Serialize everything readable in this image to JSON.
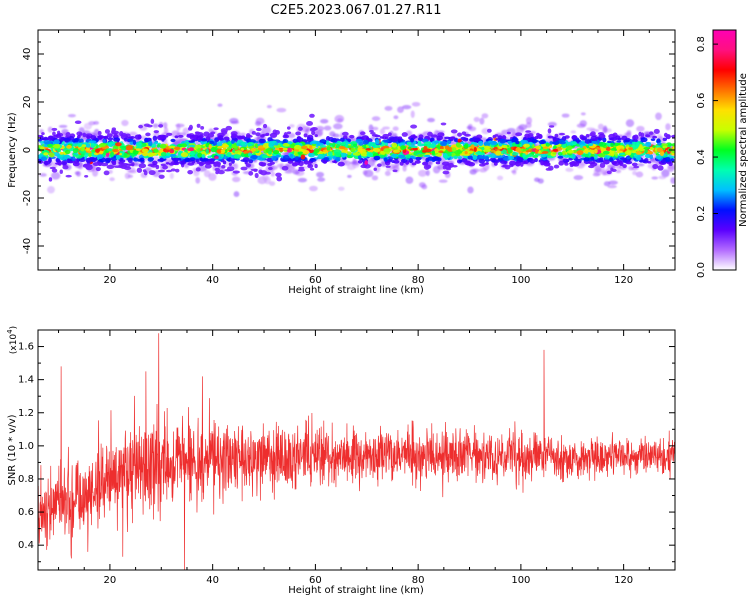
{
  "figure_title": "C2E5.2023.067.01.27.R11",
  "colors": {
    "snr_line": "#ee2e2e",
    "colormap": [
      "#ffffff",
      "#b26bff",
      "#5a00ff",
      "#0010ff",
      "#00c0ff",
      "#00ffb0",
      "#00ff20",
      "#c8ff00",
      "#ffe000",
      "#ff7000",
      "#ff0000",
      "#ff1080",
      "#ff00b4"
    ]
  },
  "chart_data": [
    {
      "type": "heatmap",
      "panel": "spectrogram",
      "title": "",
      "xlabel": "Height of straight line (km)",
      "ylabel": "Frequency (Hz)",
      "xlim": [
        6,
        130
      ],
      "ylim": [
        -50,
        50
      ],
      "x_ticks": [
        "20",
        "40",
        "60",
        "80",
        "100",
        "120"
      ],
      "y_ticks": [
        "-40",
        "-20",
        "0",
        "20",
        "40"
      ],
      "grid": false,
      "description_of_signal": "Narrow band of spectral power centred on 0 Hz (roughly -10 to +10 Hz) across all heights",
      "colorbar": {
        "label": "Normalized spectral amplitude",
        "range": [
          0.0,
          0.85
        ],
        "ticks": [
          "0.0",
          "0.2",
          "0.4",
          "0.6",
          "0.8"
        ]
      }
    },
    {
      "type": "line",
      "panel": "snr",
      "title": "",
      "xlabel": "Height of straight line (km)",
      "ylabel": "SNR (10 * v/v)",
      "y_multiplier": "(x10",
      "y_multiplier_exp": "4",
      "y_multiplier_close": ")",
      "xlim": [
        6,
        130
      ],
      "ylim": [
        0.25,
        1.7
      ],
      "x_ticks": [
        "20",
        "40",
        "60",
        "80",
        "100",
        "120"
      ],
      "y_ticks": [
        "0.4",
        "0.6",
        "0.8",
        "1.0",
        "1.2",
        "1.4",
        "1.6"
      ],
      "grid": false,
      "series": [
        {
          "color": "#ee2e2e",
          "envelope_x": [
            6,
            10,
            15,
            20,
            25,
            30,
            40,
            50,
            60,
            70,
            80,
            90,
            100,
            110,
            120,
            130
          ],
          "mean_y": [
            0.62,
            0.66,
            0.72,
            0.8,
            0.86,
            0.9,
            0.92,
            0.93,
            0.93,
            0.93,
            0.94,
            0.94,
            0.94,
            0.93,
            0.93,
            0.94
          ],
          "spread": [
            0.22,
            0.28,
            0.32,
            0.3,
            0.32,
            0.3,
            0.26,
            0.22,
            0.2,
            0.18,
            0.18,
            0.16,
            0.16,
            0.14,
            0.13,
            0.13
          ],
          "peaks": [
            {
              "x": 10.5,
              "y": 1.48
            },
            {
              "x": 29.5,
              "y": 1.68
            },
            {
              "x": 34.5,
              "y": 1.7
            },
            {
              "x": 104.5,
              "y": 1.58
            },
            {
              "x": 27,
              "y": 1.45
            },
            {
              "x": 38,
              "y": 1.42
            }
          ],
          "troughs": [
            {
              "x": 12.5,
              "y": 0.32
            },
            {
              "x": 34.5,
              "y": 0.25
            },
            {
              "x": 22.5,
              "y": 0.33
            }
          ]
        }
      ]
    }
  ]
}
